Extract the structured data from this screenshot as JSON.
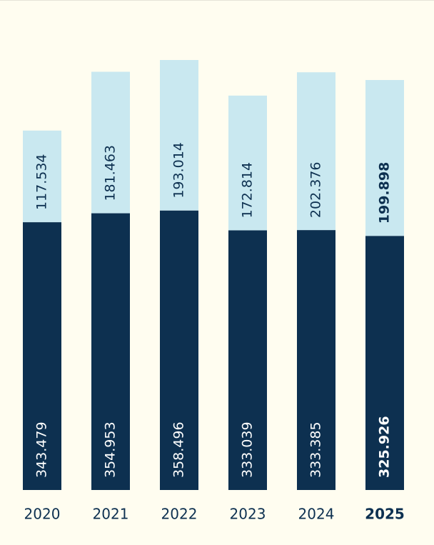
{
  "chart_data": {
    "type": "stacked_bar",
    "categories": [
      "2020",
      "2021",
      "2022",
      "2023",
      "2024",
      "2025"
    ],
    "series": [
      {
        "color": "#0d3050",
        "label_color": "#ffffff",
        "values": [
          343.479,
          354.953,
          358.496,
          333.039,
          333.385,
          325.926
        ]
      },
      {
        "color": "#c9e8f0",
        "label_color": "#0d3050",
        "values": [
          117.534,
          181.463,
          193.014,
          172.814,
          202.376,
          199.898
        ]
      }
    ]
  }
}
